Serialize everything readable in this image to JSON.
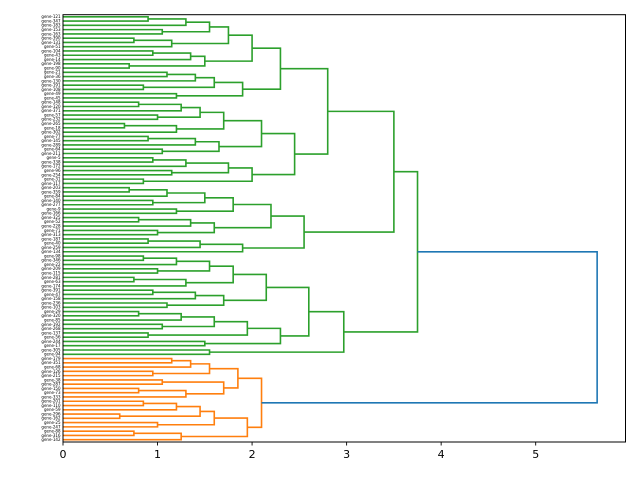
{
  "figure": {
    "background": "#ffffff"
  },
  "chart_data": {
    "type": "dendrogram",
    "title": "",
    "xlabel": "",
    "ylabel": "",
    "orientation": "right",
    "grid": false,
    "legend": "none",
    "xlim": [
      0,
      5.95
    ],
    "xticks": [
      "0",
      "1",
      "2",
      "3",
      "4",
      "5"
    ],
    "colors": {
      "green_cluster": "#2ca02c",
      "orange_cluster": "#ff7f0e",
      "root_link": "#1f77b4",
      "axis": "#000000",
      "leaf_label": "#000000"
    },
    "green_leaf_count": 80,
    "root_distance": 5.65,
    "green_root_distance": 3.75,
    "orange_root_distance": 2.1,
    "leaves": [
      "gene-121",
      "gene-347",
      "gene-183",
      "gene-153",
      "gene-163",
      "gene-390",
      "gene-131",
      "gene-51",
      "gene-104",
      "gene-43",
      "gene-14",
      "gene-198",
      "gene-90",
      "gene-21",
      "gene-36",
      "gene-130",
      "gene-191",
      "gene-108",
      "gene-49",
      "gene-45",
      "gene-148",
      "gene-120",
      "gene-371",
      "gene-57",
      "gene-232",
      "gene-265",
      "gene-18",
      "gene-302",
      "gene-77",
      "gene-145",
      "gene-289",
      "gene-64",
      "gene-211",
      "gene-5",
      "gene-338",
      "gene-172",
      "gene-96",
      "gene-254",
      "gene-31",
      "gene-117",
      "gene-203",
      "gene-359",
      "gene-84",
      "gene-140",
      "gene-277",
      "gene-9",
      "gene-166",
      "gene-325",
      "gene-52",
      "gene-228",
      "gene-71",
      "gene-313",
      "gene-187",
      "gene-40",
      "gene-259",
      "gene-134",
      "gene-98",
      "gene-346",
      "gene-22",
      "gene-209",
      "gene-115",
      "gene-281",
      "gene-63",
      "gene-174",
      "gene-391",
      "gene-47",
      "gene-158",
      "gene-236",
      "gene-103",
      "gene-29",
      "gene-320",
      "gene-85",
      "gene-192",
      "gene-268",
      "gene-137",
      "gene-56",
      "gene-244",
      "gene-17",
      "gene-305",
      "gene-94",
      "gene-179",
      "gene-351",
      "gene-68",
      "gene-126",
      "gene-215",
      "gene-38",
      "gene-287",
      "gene-150",
      "gene-73",
      "gene-333",
      "gene-201",
      "gene-110",
      "gene-59",
      "gene-296",
      "gene-162",
      "gene-25",
      "gene-247",
      "gene-88",
      "gene-316",
      "gene-142"
    ],
    "tree": [
      5.65,
      [
        3.75,
        [
          3.5,
          [
            2.8,
            [
              2.3,
              [
                2.0,
                [
                  1.75,
                  [
                    1.55,
                    [
                      1.3,
                      [
                        0.9,
                        0,
                        1
                      ],
                      2
                    ],
                    [
                      1.05,
                      3,
                      4
                    ]
                  ],
                  [
                    1.15,
                    [
                      0.75,
                      5,
                      6
                    ],
                    7
                  ]
                ],
                [
                  1.5,
                  [
                    1.35,
                    [
                      0.95,
                      8,
                      9
                    ],
                    10
                  ],
                  [
                    0.7,
                    11,
                    12
                  ]
                ]
              ],
              [
                1.9,
                [
                  1.6,
                  [
                    1.4,
                    [
                      1.1,
                      13,
                      14
                    ],
                    15
                  ],
                  [
                    0.85,
                    16,
                    17
                  ]
                ],
                [
                  1.2,
                  18,
                  19
                ]
              ]
            ],
            [
              2.45,
              [
                2.1,
                [
                  1.7,
                  [
                    1.45,
                    [
                      1.25,
                      [
                        0.8,
                        20,
                        21
                      ],
                      22
                    ],
                    [
                      1.0,
                      23,
                      24
                    ]
                  ],
                  [
                    1.2,
                    [
                      0.65,
                      25,
                      26
                    ],
                    27
                  ]
                ],
                [
                  1.65,
                  [
                    1.4,
                    [
                      0.9,
                      28,
                      29
                    ],
                    30
                  ],
                  [
                    1.05,
                    31,
                    32
                  ]
                ]
              ],
              [
                2.0,
                [
                  1.75,
                  [
                    1.3,
                    [
                      0.95,
                      33,
                      34
                    ],
                    35
                  ],
                  [
                    1.15,
                    36,
                    37
                  ]
                ],
                [
                  0.85,
                  38,
                  39
                ]
              ]
            ]
          ],
          [
            2.55,
            [
              2.2,
              [
                1.8,
                [
                  1.5,
                  [
                    1.1,
                    [
                      0.7,
                      40,
                      41
                    ],
                    42
                  ],
                  [
                    0.95,
                    43,
                    44
                  ]
                ],
                [
                  1.2,
                  45,
                  46
                ]
              ],
              [
                1.6,
                [
                  1.35,
                  [
                    0.8,
                    47,
                    48
                  ],
                  49
                ],
                [
                  1.0,
                  50,
                  51
                ]
              ]
            ],
            [
              1.9,
              [
                1.45,
                [
                  0.9,
                  52,
                  53
                ],
                54
              ],
              55
            ]
          ]
        ],
        [
          2.97,
          [
            2.6,
            [
              2.15,
              [
                1.8,
                [
                  1.55,
                  [
                    1.2,
                    [
                      0.85,
                      56,
                      57
                    ],
                    58
                  ],
                  [
                    1.0,
                    59,
                    60
                  ]
                ],
                [
                  1.3,
                  [
                    0.75,
                    61,
                    62
                  ],
                  63
                ]
              ],
              [
                1.7,
                [
                  1.4,
                  [
                    0.95,
                    64,
                    65
                  ],
                  66
                ],
                [
                  1.1,
                  67,
                  68
                ]
              ]
            ],
            [
              2.3,
              [
                1.95,
                [
                  1.6,
                  [
                    1.25,
                    [
                      0.8,
                      69,
                      70
                    ],
                    71
                  ],
                  [
                    1.05,
                    72,
                    73
                  ]
                ],
                [
                  0.9,
                  74,
                  75
                ]
              ],
              [
                1.5,
                76,
                77
              ]
            ]
          ],
          [
            1.55,
            78,
            79
          ]
        ]
      ],
      [
        2.1,
        [
          1.85,
          [
            1.55,
            [
              1.35,
              [
                1.15,
                80,
                81
              ],
              82
            ],
            [
              0.95,
              83,
              84
            ]
          ],
          [
            1.7,
            [
              1.05,
              85,
              86
            ],
            [
              1.3,
              [
                0.8,
                87,
                88
              ],
              89
            ]
          ]
        ],
        [
          1.95,
          [
            1.6,
            [
              1.45,
              [
                1.2,
                [
                  0.85,
                  90,
                  91
                ],
                92
              ],
              [
                0.6,
                93,
                94
              ]
            ],
            [
              1.0,
              95,
              96
            ]
          ],
          [
            1.25,
            [
              0.75,
              97,
              98
            ],
            99
          ]
        ]
      ]
    ]
  }
}
